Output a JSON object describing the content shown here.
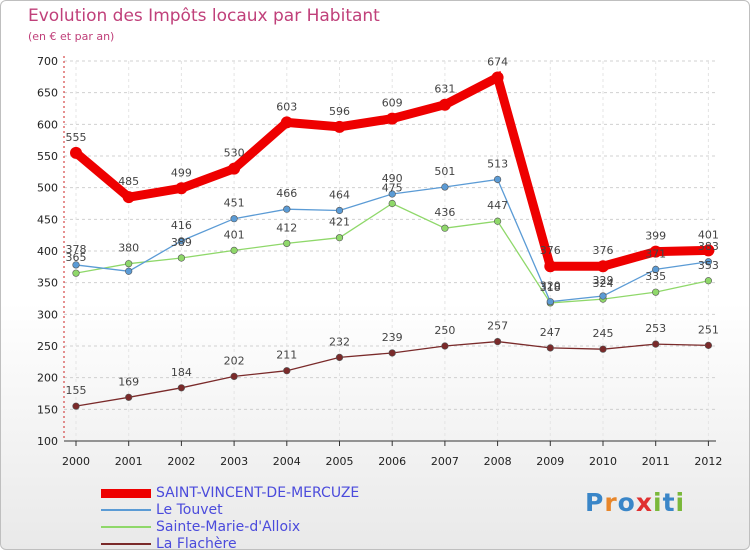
{
  "chart_data": {
    "type": "line",
    "title": "Evolution des Impôts locaux par Habitant",
    "subtitle": "(en € et par an)",
    "xlabel": "",
    "ylabel": "",
    "ylim": [
      100,
      700
    ],
    "yticks": [
      100,
      150,
      200,
      250,
      300,
      350,
      400,
      450,
      500,
      550,
      600,
      650,
      700
    ],
    "categories": [
      "2000",
      "2001",
      "2002",
      "2003",
      "2004",
      "2005",
      "2006",
      "2007",
      "2008",
      "2009",
      "2010",
      "2011",
      "2012"
    ],
    "grid": "horizontal dashed",
    "legend_position": "bottom-left",
    "series": [
      {
        "name": "SAINT-VINCENT-DE-MERCUZE",
        "color": "#ee0000",
        "values": [
          555,
          485,
          499,
          530,
          603,
          596,
          609,
          631,
          674,
          376,
          376,
          399,
          401
        ]
      },
      {
        "name": "Le Touvet",
        "color": "#5b9bd5",
        "values": [
          378,
          368,
          416,
          451,
          466,
          464,
          490,
          501,
          513,
          320,
          329,
          371,
          383
        ]
      },
      {
        "name": "Sainte-Marie-d'Alloix",
        "color": "#8fd86a",
        "values": [
          365,
          380,
          389,
          401,
          412,
          421,
          475,
          436,
          447,
          318,
          324,
          335,
          353
        ]
      },
      {
        "name": "La Flachère",
        "color": "#7a2a2a",
        "values": [
          155,
          169,
          184,
          202,
          211,
          232,
          239,
          250,
          257,
          247,
          245,
          253,
          251
        ]
      }
    ]
  },
  "labels": {
    "SAINT-VINCENT-DE-MERCUZE": [
      "555",
      "485",
      "499",
      "530",
      "603",
      "596",
      "609",
      "631",
      "674",
      "376",
      "376",
      "399",
      "401"
    ],
    "Le Touvet": [
      "378",
      "",
      "416",
      "451",
      "466",
      "464",
      "490",
      "501",
      "513",
      "320",
      "329",
      "371",
      "383"
    ],
    "Sainte-Marie-d'Alloix": [
      "365",
      "380",
      "389",
      "401",
      "412",
      "421",
      "475",
      "436",
      "447",
      "318",
      "324",
      "335",
      "353"
    ],
    "La Flachère": [
      "155",
      "169",
      "184",
      "202",
      "211",
      "232",
      "239",
      "250",
      "257",
      "247",
      "245",
      "253",
      "251"
    ]
  },
  "logo": {
    "text": "Proxiti",
    "letter_colors": [
      "#3a86c8",
      "#e8862a",
      "#3a86c8",
      "#e03030",
      "#7ab83a",
      "#3a86c8",
      "#7ab83a"
    ]
  }
}
